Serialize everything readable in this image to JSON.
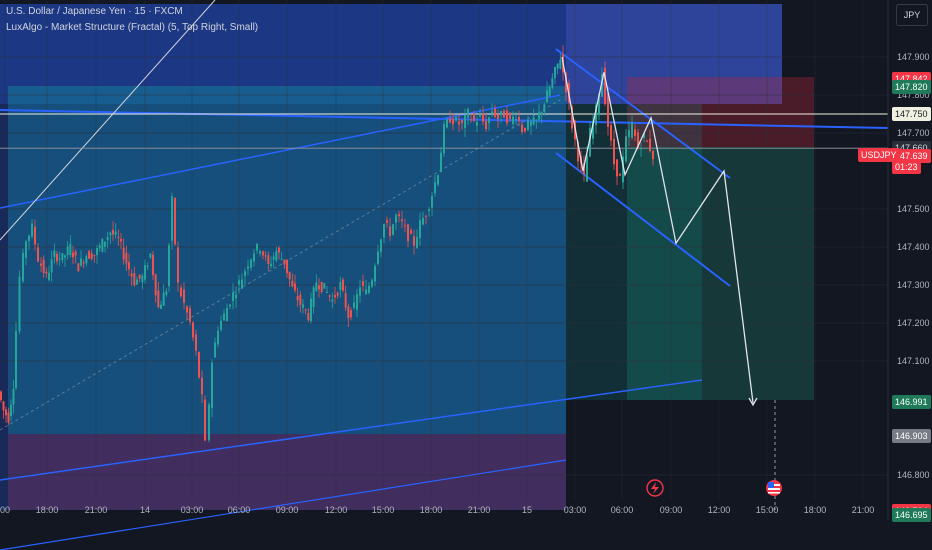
{
  "header": {
    "line1": "U.S. Dollar / Japanese Yen · 15 · FXCM",
    "line2": "LuxAlgo - Market Structure (Fractal) (5, Top Right, Small)"
  },
  "currency_button": "JPY",
  "symbol_badge": "USDJPY",
  "countdown": "01:23",
  "price_labels": [
    {
      "value": "147.842",
      "bg": "#f23645",
      "fg": "#ffffff"
    },
    {
      "value": "147.820",
      "bg": "#1f7a5a",
      "fg": "#ffffff"
    },
    {
      "value": "147.750",
      "bg": "#f0f0e0",
      "fg": "#131722"
    },
    {
      "value": "147.660",
      "bg": "#2a2e39",
      "fg": "#d1d4dc"
    },
    {
      "value": "147.639",
      "bg": "#f23645",
      "fg": "#ffffff"
    },
    {
      "value": "146.991",
      "bg": "#1f7a5a",
      "fg": "#ffffff"
    },
    {
      "value": "146.903",
      "bg": "#787b86",
      "fg": "#ffffff"
    },
    {
      "value": "146.704",
      "bg": "#f23645",
      "fg": "#ffffff"
    },
    {
      "value": "146.695",
      "bg": "#1f7a5a",
      "fg": "#ffffff"
    }
  ],
  "colors": {
    "background": "#131722",
    "up": "#26a69a",
    "down": "#ef5350",
    "blue_zone": "#2962ff",
    "teal_zone": "#0fa3a3",
    "red_zone": "#b2263a",
    "channel": "#2962ff",
    "projection": "#e0e3eb"
  },
  "chart_data": {
    "type": "candlestick",
    "ylim": [
      146.64,
      148.0
    ],
    "y_ticks": [
      "147.900",
      "147.800",
      "147.700",
      "147.500",
      "147.400",
      "147.300",
      "147.200",
      "147.100",
      "146.800"
    ],
    "x_ticks": [
      "00",
      "18:00",
      "21:00",
      "14",
      "03:00",
      "06:00",
      "09:00",
      "12:00",
      "15:00",
      "18:00",
      "21:00",
      "15",
      "03:00",
      "06:00",
      "09:00",
      "12:00",
      "15:00",
      "18:00",
      "21:00"
    ],
    "horizontal_levels": [
      147.75,
      147.66
    ],
    "price_path": [
      [
        0,
        147.02
      ],
      [
        5,
        146.97
      ],
      [
        10,
        146.95
      ],
      [
        15,
        147.04
      ],
      [
        22,
        147.32
      ],
      [
        28,
        147.42
      ],
      [
        34,
        147.45
      ],
      [
        40,
        147.37
      ],
      [
        48,
        147.32
      ],
      [
        56,
        147.38
      ],
      [
        64,
        147.37
      ],
      [
        72,
        147.4
      ],
      [
        80,
        147.35
      ],
      [
        88,
        147.38
      ],
      [
        96,
        147.38
      ],
      [
        104,
        147.41
      ],
      [
        112,
        147.44
      ],
      [
        120,
        147.42
      ],
      [
        128,
        147.36
      ],
      [
        136,
        147.31
      ],
      [
        144,
        147.32
      ],
      [
        152,
        147.38
      ],
      [
        160,
        147.24
      ],
      [
        168,
        147.29
      ],
      [
        174,
        147.52
      ],
      [
        180,
        147.3
      ],
      [
        186,
        147.25
      ],
      [
        192,
        147.2
      ],
      [
        198,
        147.12
      ],
      [
        204,
        147.0
      ],
      [
        208,
        146.88
      ],
      [
        214,
        147.1
      ],
      [
        220,
        147.19
      ],
      [
        226,
        147.22
      ],
      [
        232,
        147.26
      ],
      [
        238,
        147.29
      ],
      [
        244,
        147.32
      ],
      [
        250,
        147.36
      ],
      [
        256,
        147.39
      ],
      [
        262,
        147.4
      ],
      [
        270,
        147.35
      ],
      [
        278,
        147.39
      ],
      [
        286,
        147.36
      ],
      [
        294,
        147.29
      ],
      [
        302,
        147.25
      ],
      [
        310,
        147.22
      ],
      [
        318,
        147.31
      ],
      [
        326,
        147.29
      ],
      [
        334,
        147.26
      ],
      [
        342,
        147.3
      ],
      [
        350,
        147.22
      ],
      [
        356,
        147.24
      ],
      [
        362,
        147.3
      ],
      [
        368,
        147.28
      ],
      [
        374,
        147.32
      ],
      [
        380,
        147.4
      ],
      [
        386,
        147.46
      ],
      [
        392,
        147.44
      ],
      [
        398,
        147.48
      ],
      [
        404,
        147.46
      ],
      [
        410,
        147.43
      ],
      [
        416,
        147.41
      ],
      [
        422,
        147.46
      ],
      [
        428,
        147.49
      ],
      [
        434,
        147.54
      ],
      [
        440,
        147.6
      ],
      [
        446,
        147.71
      ],
      [
        452,
        147.74
      ],
      [
        458,
        147.73
      ],
      [
        464,
        147.72
      ],
      [
        470,
        147.75
      ],
      [
        476,
        147.73
      ],
      [
        482,
        147.74
      ],
      [
        488,
        147.72
      ],
      [
        494,
        147.76
      ],
      [
        500,
        147.74
      ],
      [
        506,
        147.75
      ],
      [
        512,
        147.73
      ],
      [
        518,
        147.75
      ],
      [
        524,
        147.71
      ],
      [
        530,
        147.72
      ],
      [
        538,
        147.73
      ],
      [
        546,
        147.78
      ],
      [
        554,
        147.84
      ],
      [
        562,
        147.9
      ],
      [
        568,
        147.82
      ],
      [
        574,
        147.72
      ],
      [
        580,
        147.64
      ],
      [
        586,
        147.58
      ],
      [
        592,
        147.7
      ],
      [
        598,
        147.76
      ],
      [
        604,
        147.86
      ],
      [
        610,
        147.72
      ],
      [
        616,
        147.62
      ],
      [
        622,
        147.58
      ],
      [
        628,
        147.68
      ],
      [
        634,
        147.72
      ],
      [
        640,
        147.66
      ],
      [
        646,
        147.69
      ],
      [
        652,
        147.66
      ],
      [
        656,
        147.64
      ]
    ],
    "projection_path": [
      [
        562,
        147.9
      ],
      [
        583,
        147.6
      ],
      [
        604,
        147.86
      ],
      [
        625,
        147.59
      ],
      [
        651,
        147.74
      ],
      [
        676,
        147.41
      ],
      [
        724,
        147.6
      ],
      [
        753,
        146.99
      ]
    ]
  }
}
